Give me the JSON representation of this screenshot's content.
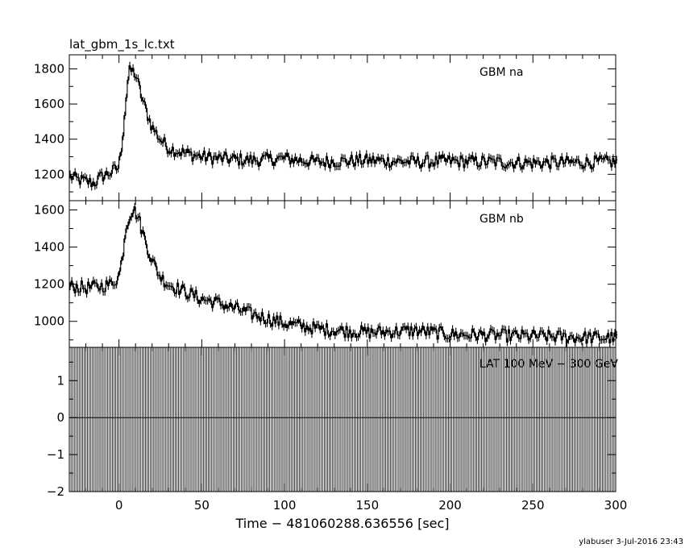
{
  "title": "lat_gbm_1s_lc.txt",
  "footer": "ylabuser  3-Jul-2016 23:43",
  "chart_data": {
    "type": "line",
    "title": "lat_gbm_1s_lc.txt",
    "xlabel": "Time − 481060288.636556 [sec]",
    "xlim": [
      -30,
      300
    ],
    "xticks": [
      0,
      50,
      100,
      150,
      200,
      250,
      300
    ],
    "xtick_labels": [
      "0",
      "50",
      "100",
      "150",
      "200",
      "250",
      "300"
    ],
    "grid": false,
    "panels": [
      {
        "name": "GBM na",
        "ylim": [
          1050,
          1880
        ],
        "yticks": [
          1200,
          1400,
          1600,
          1800
        ],
        "ytick_labels": [
          "1200",
          "1400",
          "1600",
          "1800"
        ],
        "series": {
          "x": [
            -30,
            -25,
            -20,
            -15,
            -10,
            -5,
            0,
            2,
            4,
            6,
            8,
            10,
            12,
            15,
            20,
            25,
            30,
            40,
            50,
            60,
            80,
            100,
            120,
            150,
            180,
            200,
            250,
            300
          ],
          "y": [
            1190,
            1170,
            1160,
            1150,
            1190,
            1210,
            1240,
            1390,
            1600,
            1780,
            1790,
            1770,
            1700,
            1600,
            1470,
            1400,
            1350,
            1320,
            1300,
            1290,
            1280,
            1290,
            1270,
            1280,
            1270,
            1275,
            1265,
            1270
          ]
        }
      },
      {
        "name": "GBM nb",
        "ylim": [
          860,
          1650
        ],
        "yticks": [
          1000,
          1200,
          1400,
          1600
        ],
        "ytick_labels": [
          "1000",
          "1200",
          "1400",
          "1600"
        ],
        "series": {
          "x": [
            -30,
            -20,
            -10,
            -5,
            0,
            2,
            4,
            6,
            8,
            10,
            12,
            15,
            20,
            25,
            30,
            40,
            50,
            60,
            80,
            100,
            120,
            150,
            180,
            200,
            250,
            300
          ],
          "y": [
            1190,
            1180,
            1190,
            1200,
            1240,
            1340,
            1500,
            1560,
            1600,
            1590,
            1550,
            1460,
            1330,
            1240,
            1200,
            1160,
            1120,
            1100,
            1040,
            990,
            960,
            940,
            950,
            930,
            920,
            910
          ]
        }
      },
      {
        "name": "LAT 100 MeV − 300 GeV",
        "ylim": [
          -2,
          1.9
        ],
        "yticks": [
          -2,
          -1,
          0,
          1
        ],
        "ytick_labels": [
          "−2",
          "−1",
          "0",
          "1"
        ],
        "series": {
          "value": 0,
          "bar_spacing": 1,
          "bar_ylim": [
            -2,
            1.9
          ]
        }
      }
    ]
  }
}
